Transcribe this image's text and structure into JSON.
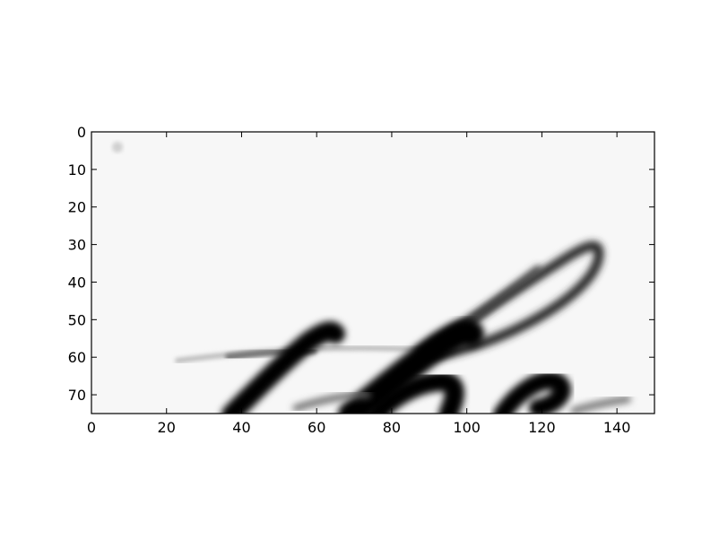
{
  "chart_data": {
    "type": "heatmap",
    "title": "",
    "xlabel": "",
    "ylabel": "",
    "colormap": "gray",
    "image_content": "grayscale handwriting crop showing cursive strokes",
    "xlim": [
      0,
      150
    ],
    "ylim": [
      75,
      0
    ],
    "x_ticks": [
      0,
      20,
      40,
      60,
      80,
      100,
      120,
      140
    ],
    "y_ticks": [
      0,
      10,
      20,
      30,
      40,
      50,
      60,
      70
    ],
    "x_tick_labels": [
      "0",
      "20",
      "40",
      "60",
      "80",
      "100",
      "120",
      "140"
    ],
    "y_tick_labels": [
      "0",
      "10",
      "20",
      "30",
      "40",
      "50",
      "60",
      "70"
    ],
    "grid": false
  },
  "colors": {
    "background": "#ffffff",
    "image_background": "#f7f7f7",
    "ink": "#000000",
    "axes": "#000000"
  }
}
